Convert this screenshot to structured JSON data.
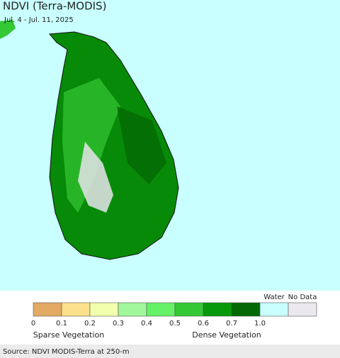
{
  "header": {
    "title": "NDVI (Terra-MODIS)",
    "subtitle": "Jul. 4 - Jul. 11, 2025"
  },
  "legend": {
    "swatches": [
      "#e3aa64",
      "#fde08c",
      "#f2ffac",
      "#a2f79c",
      "#66f266",
      "#35c835",
      "#079907",
      "#046804",
      "#c9ffff",
      "#ebe9ee"
    ],
    "ticks": [
      "0",
      "0.1",
      "0.2",
      "0.3",
      "0.4",
      "0.5",
      "0.6",
      "0.7",
      "1.0"
    ],
    "special": [
      "Water",
      "No Data"
    ],
    "captions": [
      "Sparse Vegetation",
      "Dense Vegetation"
    ]
  },
  "footer": {
    "source": "Source: NDVI MODIS-Terra at 250-m"
  }
}
